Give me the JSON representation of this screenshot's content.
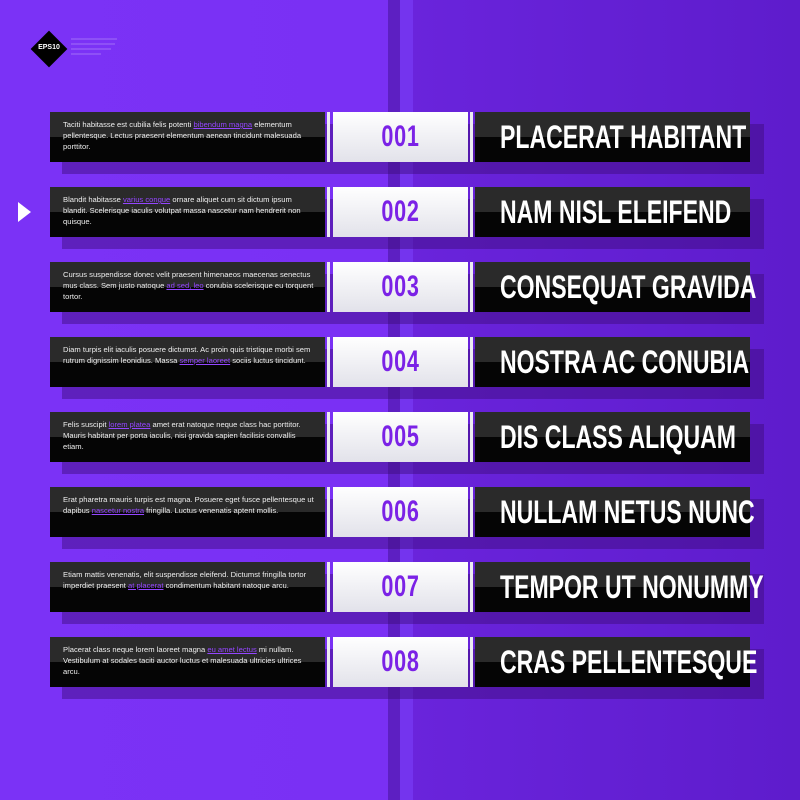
{
  "badge": {
    "label": "EPS10"
  },
  "colors": {
    "background": "#7b32f6",
    "accent": "#7b22e6",
    "link": "#9446ff",
    "panel": "#050505"
  },
  "selected_row": 2,
  "rows": [
    {
      "number": "001",
      "title": "PLACERAT HABITANT",
      "text_before": "Taciti habitasse est cubilia felis potenti ",
      "link": "bibendum magna",
      "text_after": " elementum pellentesque. Lectus praesent elementum aenean tincidunt malesuada porttitor."
    },
    {
      "number": "002",
      "title": "NAM NISL ELEIFEND",
      "text_before": "Blandit habitasse ",
      "link": "varius congue",
      "text_after": " ornare aliquet cum sit dictum ipsum blandit. Scelerisque iaculis volutpat massa nascetur nam hendrerit non quisque."
    },
    {
      "number": "003",
      "title": "CONSEQUAT GRAVIDA",
      "text_before": "Cursus suspendisse donec velit praesent himenaeos maecenas senectus mus class. Sem justo natoque ",
      "link": "ad sed, leo",
      "text_after": " conubia scelerisque eu torquent tortor."
    },
    {
      "number": "004",
      "title": "NOSTRA AC CONUBIA",
      "text_before": "Diam turpis elit iaculis posuere dictumst. Ac proin quis tristique morbi sem rutrum dignissim leonidius. Massa ",
      "link": "semper laoreet",
      "text_after": " sociis luctus tincidunt."
    },
    {
      "number": "005",
      "title": "DIS CLASS ALIQUAM",
      "text_before": "Felis suscipit ",
      "link": "lorem platea",
      "text_after": " amet erat natoque neque class hac porttitor. Mauris habitant per porta iaculis, nisi gravida sapien facilisis convallis etiam."
    },
    {
      "number": "006",
      "title": "NULLAM NETUS NUNC",
      "text_before": "Erat pharetra mauris turpis est magna. Posuere eget fusce pellentesque ut dapibus ",
      "link": "nascetur nostra",
      "text_after": " fringilla. Luctus venenatis aptent mollis."
    },
    {
      "number": "007",
      "title": "TEMPOR UT NONUMMY",
      "text_before": "Etiam mattis venenatis, elit suspendisse eleifend. Dictumst fringilla tortor imperdiet praesent ",
      "link": "at placerat",
      "text_after": " condimentum habitant natoque arcu."
    },
    {
      "number": "008",
      "title": "CRAS PELLENTESQUE",
      "text_before": "Placerat class neque lorem laoreet magna ",
      "link": "eu amet lectus",
      "text_after": " mi nullam. Vestibulum at sodales taciti auctor luctus et malesuada ultricies ultrices arcu."
    }
  ]
}
